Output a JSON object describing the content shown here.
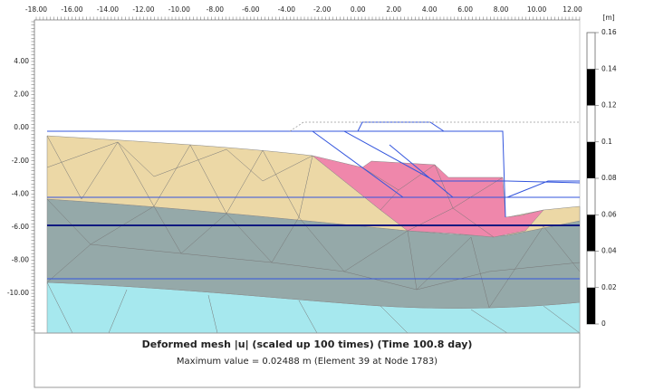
{
  "plot": {
    "x_labels": [
      "-18.00",
      "-16.00",
      "-14.00",
      "-12.00",
      "-10.00",
      "-8.00",
      "-6.00",
      "-4.00",
      "-2.00",
      "0.00",
      "2.00",
      "4.00",
      "6.00",
      "8.00",
      "10.00",
      "12.00"
    ],
    "y_labels": [
      "4.00",
      "2.00",
      "0.00",
      "-2.00",
      "-4.00",
      "-6.00",
      "-8.00",
      "-10.00"
    ]
  },
  "legend": {
    "unit": "[m]",
    "labels": [
      "0.16",
      "0.14",
      "0.12",
      "0.1",
      "0.08",
      "0.06",
      "0.04",
      "0.02",
      "0"
    ]
  },
  "caption": {
    "title": "Deformed mesh |u| (scaled up 100 times) (Time 100.8 day)",
    "subtitle": "Maximum value = 0.02488 m (Element 39 at Node 1783)"
  }
}
